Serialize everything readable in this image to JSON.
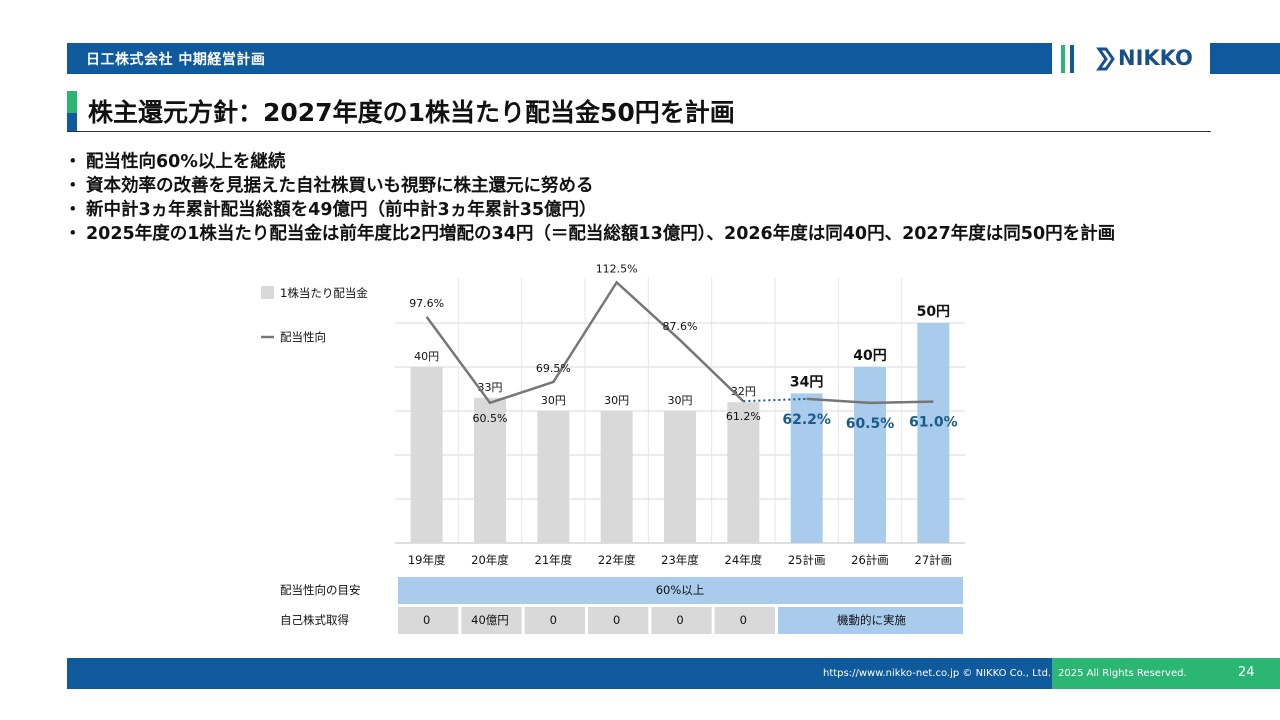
{
  "header": {
    "company_plan": "日工株式会社 中期経営計画",
    "logo_text": "NIKKO"
  },
  "title": "株主還元方針：2027年度の1株当たり配当金50円を計画",
  "bullets": [
    "配当性向60%以上を継続",
    "資本効率の改善を見据えた自社株買いも視野に株主還元に努める",
    "新中計3ヵ年累計配当総額を49億円（前中計3ヵ年累計35億円）",
    "2025年度の1株当たり配当金は前年度比2円増配の34円（＝配当総額13億円）、2026年度は同40円、2027年度は同50円を計画"
  ],
  "chart_data": {
    "type": "bar",
    "categories": [
      "19年度",
      "20年度",
      "21年度",
      "22年度",
      "23年度",
      "24年度",
      "25計画",
      "26計画",
      "27計画"
    ],
    "series": [
      {
        "name": "1株当たり配当金",
        "kind": "bar",
        "unit": "円",
        "values": [
          40,
          33,
          30,
          30,
          30,
          32,
          34,
          40,
          50
        ],
        "labels": [
          "40円",
          "33円",
          "30円",
          "30円",
          "30円",
          "32円",
          "34円",
          "40円",
          "50円"
        ]
      },
      {
        "name": "配当性向",
        "kind": "line",
        "unit": "%",
        "values": [
          97.6,
          60.5,
          69.5,
          112.5,
          87.6,
          61.2,
          62.2,
          60.5,
          61.0
        ],
        "labels": [
          "97.6%",
          "60.5%",
          "69.5%",
          "112.5%",
          "87.6%",
          "61.2%",
          "62.2%",
          "60.5%",
          "61.0%"
        ]
      }
    ],
    "actual_count": 6,
    "colors": {
      "actual_bar": "#d9d9d9",
      "plan_bar": "#a9cbec",
      "line": "#767676",
      "plan_label": "#1a5b8c"
    },
    "bar_ylim": [
      0,
      50
    ],
    "line_ylim": [
      0,
      120
    ],
    "legend": "top-left"
  },
  "table": {
    "row1_label": "配当性向の目安",
    "row1_value": "60%以上",
    "row2_label": "自己株式取得",
    "row2_values": [
      "0",
      "40億円",
      "0",
      "0",
      "0",
      "0"
    ],
    "row2_plan": "機動的に実施"
  },
  "footer": {
    "url": "https://www.nikko-net.co.jp © NIKKO Co., Ltd.",
    "rights": "2025 All Rights Reserved.",
    "page": "24"
  }
}
